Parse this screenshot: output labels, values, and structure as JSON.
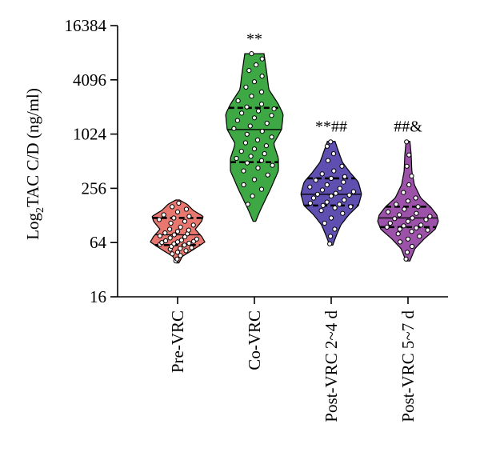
{
  "chart_data": {
    "type": "violin",
    "ylabel_prefix": "Log",
    "ylabel_sub": "2",
    "ylabel_rest": "TAC C/D (ng/ml)",
    "y_scale": "log2",
    "ylim": [
      16,
      16384
    ],
    "yticks": [
      16,
      64,
      256,
      1024,
      4096,
      16384
    ],
    "ytick_labels": [
      "16",
      "64",
      "256",
      "1024",
      "4096",
      "16384"
    ],
    "groups": [
      {
        "label": "Pre-VRC",
        "color": "#e8776f",
        "annotation": "",
        "min": 38,
        "max": 190,
        "median": 78,
        "q1": 60,
        "q3": 120,
        "density": [
          [
            38,
            0.04
          ],
          [
            45,
            0.15
          ],
          [
            55,
            0.55
          ],
          [
            65,
            0.85
          ],
          [
            75,
            0.75
          ],
          [
            90,
            0.55
          ],
          [
            110,
            0.75
          ],
          [
            125,
            0.8
          ],
          [
            145,
            0.5
          ],
          [
            170,
            0.3
          ],
          [
            190,
            0.06
          ]
        ],
        "points": [
          40,
          42,
          46,
          48,
          50,
          52,
          54,
          55,
          56,
          58,
          60,
          61,
          62,
          63,
          64,
          65,
          66,
          67,
          68,
          70,
          72,
          74,
          76,
          78,
          80,
          82,
          85,
          88,
          90,
          95,
          100,
          105,
          110,
          115,
          120,
          125,
          130,
          140,
          150,
          160,
          175
        ]
      },
      {
        "label": "Co-VRC",
        "color": "#3da844",
        "annotation": "**",
        "min": 110,
        "max": 8000,
        "median": 1150,
        "q1": 500,
        "q3": 2000,
        "density": [
          [
            110,
            0.04
          ],
          [
            150,
            0.2
          ],
          [
            250,
            0.5
          ],
          [
            400,
            0.75
          ],
          [
            550,
            0.75
          ],
          [
            800,
            0.6
          ],
          [
            1150,
            0.85
          ],
          [
            1700,
            0.9
          ],
          [
            2200,
            0.75
          ],
          [
            3200,
            0.45
          ],
          [
            4500,
            0.4
          ],
          [
            6000,
            0.35
          ],
          [
            8000,
            0.3
          ]
        ],
        "points": [
          170,
          210,
          250,
          280,
          320,
          360,
          400,
          430,
          460,
          490,
          520,
          550,
          580,
          620,
          660,
          700,
          760,
          820,
          880,
          950,
          1020,
          1100,
          1180,
          1260,
          1350,
          1450,
          1550,
          1650,
          1750,
          1850,
          1950,
          2050,
          2200,
          2400,
          2700,
          3000,
          3400,
          3900,
          4500,
          5200,
          6000,
          7000,
          8000
        ]
      },
      {
        "label": "Post-VRC 2~4 d",
        "color": "#5e4fb0",
        "annotation": "**##",
        "min": 60,
        "max": 850,
        "median": 220,
        "q1": 165,
        "q3": 330,
        "density": [
          [
            60,
            0.05
          ],
          [
            75,
            0.15
          ],
          [
            100,
            0.3
          ],
          [
            130,
            0.55
          ],
          [
            165,
            0.85
          ],
          [
            220,
            0.95
          ],
          [
            300,
            0.85
          ],
          [
            380,
            0.6
          ],
          [
            500,
            0.35
          ],
          [
            700,
            0.2
          ],
          [
            850,
            0.12
          ]
        ],
        "points": [
          62,
          75,
          90,
          105,
          120,
          135,
          145,
          155,
          160,
          165,
          170,
          175,
          180,
          190,
          200,
          210,
          215,
          220,
          225,
          235,
          245,
          255,
          265,
          280,
          300,
          315,
          330,
          345,
          370,
          400,
          450,
          520,
          620,
          750,
          840
        ]
      },
      {
        "label": "Post-VRC 5~7 d",
        "color": "#9c52a8",
        "annotation": "##&",
        "min": 40,
        "max": 850,
        "median": 120,
        "q1": 95,
        "q3": 160,
        "density": [
          [
            40,
            0.06
          ],
          [
            55,
            0.22
          ],
          [
            70,
            0.5
          ],
          [
            90,
            0.85
          ],
          [
            110,
            0.95
          ],
          [
            130,
            0.9
          ],
          [
            160,
            0.7
          ],
          [
            200,
            0.4
          ],
          [
            280,
            0.2
          ],
          [
            400,
            0.12
          ],
          [
            600,
            0.1
          ],
          [
            850,
            0.06
          ]
        ],
        "points": [
          42,
          50,
          58,
          65,
          70,
          75,
          80,
          85,
          88,
          90,
          93,
          95,
          98,
          100,
          105,
          110,
          115,
          118,
          120,
          125,
          130,
          135,
          140,
          150,
          160,
          170,
          185,
          200,
          230,
          280,
          350,
          450,
          600,
          840
        ]
      }
    ]
  }
}
